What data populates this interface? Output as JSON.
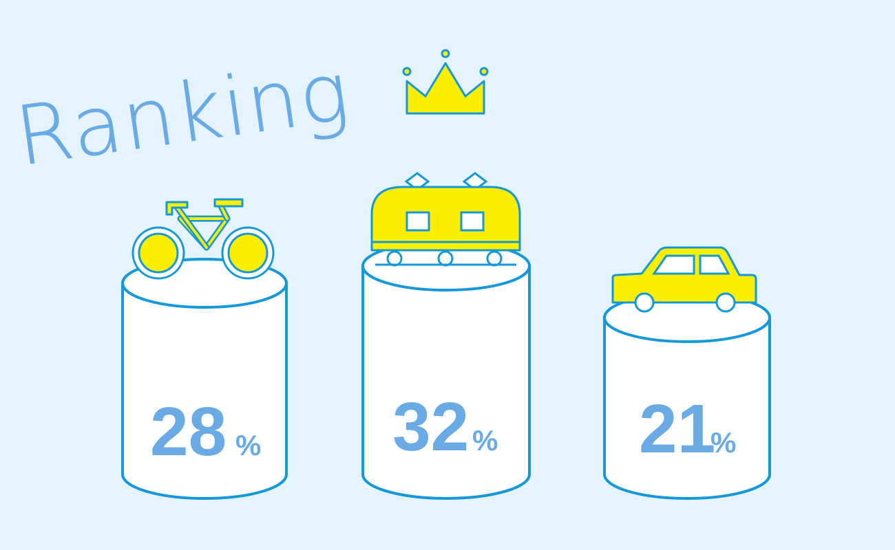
{
  "title": "Ranking",
  "colors": {
    "background": "#e4f3fc",
    "accent_text": "#6aabe6",
    "outline": "#1598d9",
    "icon_fill": "#fbef00"
  },
  "crown_icon": "crown-icon",
  "ranking": [
    {
      "rank_position": "left",
      "icon": "bicycle-icon",
      "value": "28",
      "unit": "%"
    },
    {
      "rank_position": "center",
      "icon": "train-icon",
      "value": "32",
      "unit": "%"
    },
    {
      "rank_position": "right",
      "icon": "car-icon",
      "value": "21",
      "unit": "%"
    }
  ]
}
